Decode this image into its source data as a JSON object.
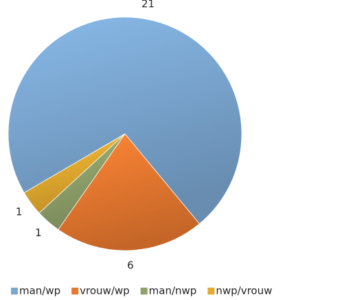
{
  "chart_data": {
    "type": "pie",
    "categories": [
      "man/wp",
      "vrouw/wp",
      "man/nwp",
      "nwp/vrouw"
    ],
    "values": [
      21,
      6,
      1,
      1
    ],
    "colors": [
      "#7aa6d0",
      "#e8782f",
      "#8fa26a",
      "#e3ab2f"
    ],
    "legend": "bottom"
  }
}
